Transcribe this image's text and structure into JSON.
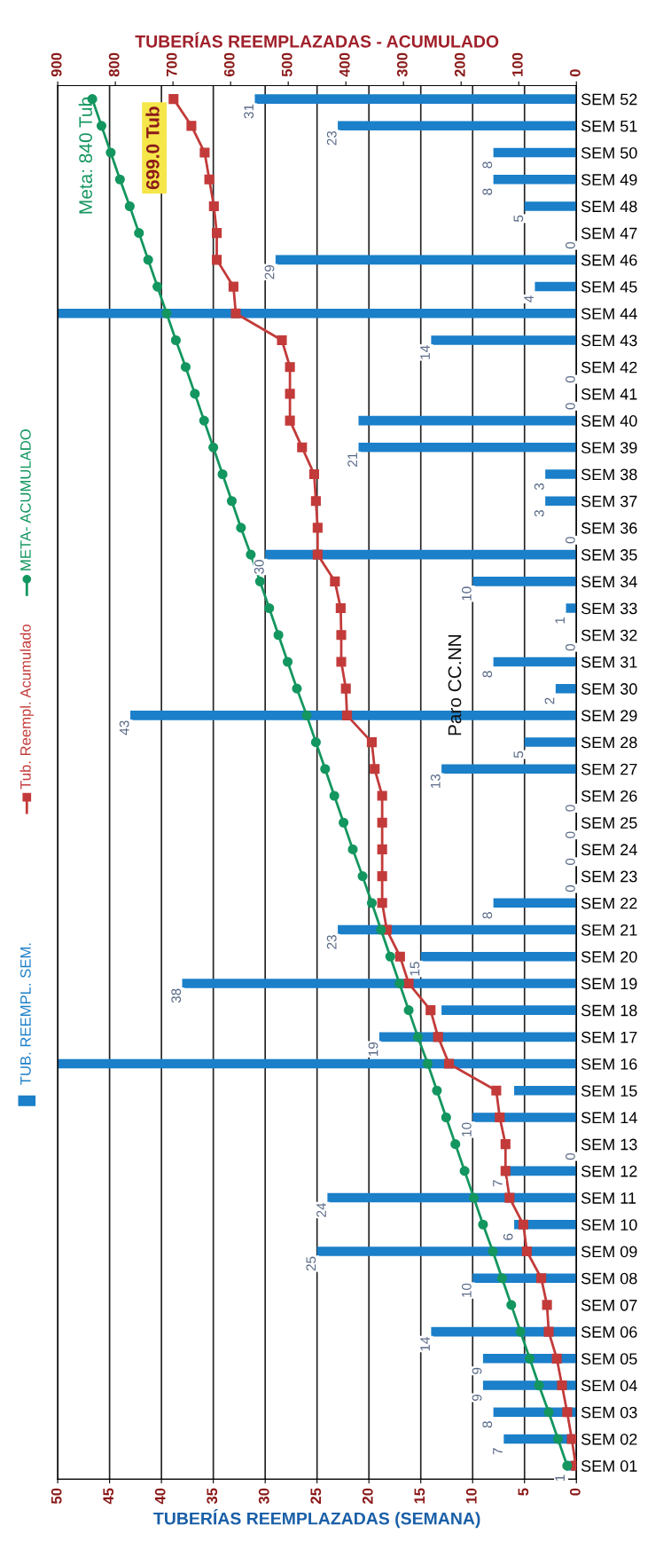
{
  "chart_data": {
    "type": "bar",
    "orientation": "horizontal",
    "xlabel": "TUBERÍAS REEMPLAZADAS (SEMANA)",
    "x2label": "TUBERÍAS REEMPLAZADAS - ACUMULADO",
    "categories": [
      "SEM 52",
      "SEM 51",
      "SEM 50",
      "SEM 49",
      "SEM 48",
      "SEM 47",
      "SEM 46",
      "SEM 45",
      "SEM 44",
      "SEM 43",
      "SEM 42",
      "SEM 41",
      "SEM 40",
      "SEM 39",
      "SEM 38",
      "SEM 37",
      "SEM 36",
      "SEM 35",
      "SEM 34",
      "SEM 33",
      "SEM 32",
      "SEM 31",
      "SEM 30",
      "SEM 29",
      "SEM 28",
      "SEM 27",
      "SEM 26",
      "SEM 25",
      "SEM 24",
      "SEM 23",
      "SEM 22",
      "SEM 21",
      "SEM 20",
      "SEM 19",
      "SEM 18",
      "SEM 17",
      "SEM 16",
      "SEM 15",
      "SEM 14",
      "SEM 13",
      "SEM 12",
      "SEM 11",
      "SEM 10",
      "SEM 09",
      "SEM 08",
      "SEM 07",
      "SEM 06",
      "SEM 05",
      "SEM 04",
      "SEM 03",
      "SEM 02",
      "SEM 01"
    ],
    "series": [
      {
        "name": "TUB. REEMPL. SEM.",
        "type": "bar",
        "color": "#1b7fc9",
        "values": [
          31,
          23,
          8,
          8,
          5,
          0,
          29,
          4,
          50,
          14,
          0,
          0,
          21,
          21,
          3,
          3,
          0,
          30,
          10,
          1,
          0,
          8,
          2,
          43,
          5,
          13,
          0,
          0,
          0,
          0,
          8,
          23,
          15,
          38,
          13,
          19,
          50,
          6,
          10,
          0,
          7,
          24,
          6,
          25,
          10,
          null,
          14,
          9,
          9,
          8,
          7,
          1
        ],
        "value_labels": [
          "31",
          "23",
          "8",
          "8",
          "5",
          "0",
          "29",
          "4",
          null,
          "14",
          "0",
          "0",
          null,
          "21",
          "3",
          "3",
          "0",
          "30",
          "10",
          "1",
          "0",
          "8",
          "2",
          "43",
          "5",
          "13",
          "0",
          "0",
          "0",
          "0",
          "8",
          "23",
          "15",
          "38",
          null,
          "19",
          null,
          null,
          "10",
          "0",
          "7",
          "24",
          "6",
          "25",
          "10",
          null,
          "14",
          "9",
          "9",
          "8",
          "7",
          "1"
        ]
      },
      {
        "name": "Tub. Reempl. Acumulado",
        "type": "line",
        "axis": "x2",
        "color": "#c23b3a",
        "marker": "square",
        "values": [
          699,
          668,
          645,
          637,
          629,
          624,
          624,
          595,
          591,
          511,
          497,
          497,
          497,
          476,
          455,
          452,
          449,
          449,
          419,
          409,
          408,
          408,
          400,
          398,
          355,
          350,
          337,
          337,
          337,
          337,
          337,
          329,
          306,
          291,
          253,
          240,
          221,
          139,
          133,
          123,
          123,
          116,
          92,
          86,
          61,
          51,
          48,
          34,
          25,
          16,
          8,
          1
        ]
      },
      {
        "name": "META- ACUMULADO",
        "type": "line",
        "axis": "x2",
        "color": "#13965f",
        "marker": "circle",
        "values": [
          840,
          824,
          808,
          792,
          775,
          759,
          743,
          727,
          711,
          695,
          678,
          662,
          646,
          630,
          614,
          598,
          582,
          565,
          549,
          533,
          517,
          501,
          485,
          468,
          452,
          436,
          420,
          404,
          388,
          371,
          355,
          339,
          323,
          307,
          291,
          275,
          258,
          242,
          226,
          210,
          194,
          178,
          162,
          145,
          129,
          113,
          97,
          81,
          65,
          48,
          32,
          16
        ]
      }
    ],
    "xlim": [
      50,
      0
    ],
    "xticks": [
      0,
      5,
      10,
      15,
      20,
      25,
      30,
      35,
      40,
      45,
      50
    ],
    "x2lim": [
      900,
      0
    ],
    "x2ticks": [
      0,
      100,
      200,
      300,
      400,
      500,
      600,
      700,
      800,
      900
    ],
    "grid": "x",
    "legend": "left",
    "annotations": [
      "Meta: 840 Tub",
      "699.0 Tub",
      "Paro CC.NN"
    ]
  }
}
